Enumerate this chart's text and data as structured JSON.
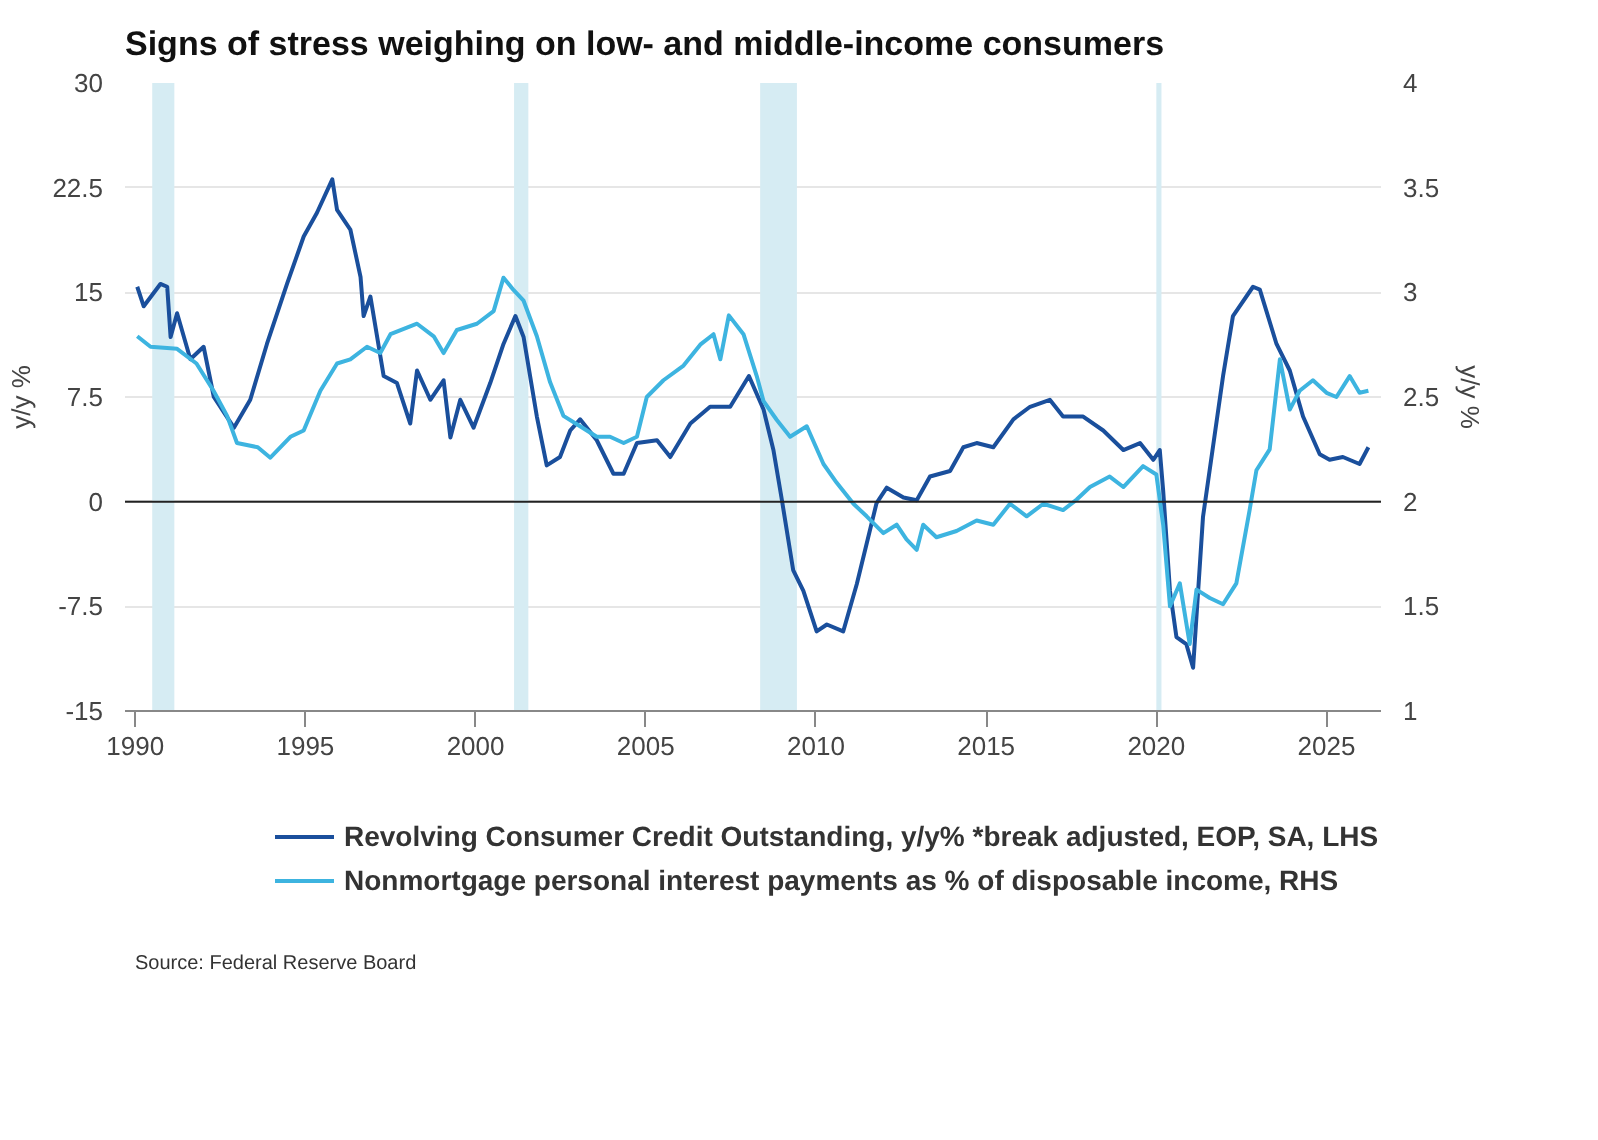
{
  "chart_data": {
    "type": "line",
    "title": "Signs of stress weighing on low- and middle-income consumers",
    "ylabel": "y/y %",
    "y2label": "y/y %",
    "xlim": [
      1989.7,
      2026.6
    ],
    "xticks": [
      1990,
      1995,
      2000,
      2005,
      2010,
      2015,
      2020,
      2025
    ],
    "ylim": [
      -15,
      30
    ],
    "yticks": [
      -15,
      -7.5,
      0,
      7.5,
      15,
      22.5,
      30
    ],
    "y2lim": [
      1,
      4
    ],
    "y2ticks": [
      1,
      1.5,
      2,
      2.5,
      3,
      3.5,
      4
    ],
    "grid": "y",
    "legend": "bottom",
    "ref_lines": [
      {
        "axis": "y",
        "value": 0,
        "color": "#222222"
      }
    ],
    "bands": [
      {
        "axis": "x",
        "from": 1990.5,
        "to": 1991.15,
        "color": "#d6ecf3"
      },
      {
        "axis": "x",
        "from": 2001.13,
        "to": 2001.55,
        "color": "#d6ecf3"
      },
      {
        "axis": "x",
        "from": 2008.36,
        "to": 2009.44,
        "color": "#d6ecf3"
      },
      {
        "axis": "x",
        "from": 2020.0,
        "to": 2020.15,
        "color": "#d6ecf3"
      }
    ],
    "series": [
      {
        "name": "Revolving Consumer Credit Outstanding, y/y% *break adjusted, EOP, SA, LHS",
        "color": "#1a4f9c",
        "x": [
          1990.06,
          1990.25,
          1990.74,
          1990.94,
          1991.04,
          1991.23,
          1991.62,
          1992.01,
          1992.31,
          1992.9,
          1993.38,
          1993.87,
          1994.46,
          1994.95,
          1995.34,
          1995.79,
          1995.93,
          1996.32,
          1996.62,
          1996.71,
          1996.91,
          1997.3,
          1997.69,
          1998.08,
          1998.28,
          1998.67,
          1999.06,
          1999.26,
          1999.55,
          1999.94,
          2000.43,
          2000.82,
          2001.17,
          2001.41,
          2001.8,
          2002.09,
          2002.48,
          2002.78,
          2003.07,
          2003.56,
          2004.05,
          2004.35,
          2004.74,
          2005.33,
          2005.72,
          2006.31,
          2006.89,
          2007.48,
          2008.03,
          2008.46,
          2008.75,
          2009.0,
          2009.33,
          2009.63,
          2010.02,
          2010.32,
          2010.8,
          2011.2,
          2011.78,
          2012.08,
          2012.57,
          2012.96,
          2013.35,
          2013.94,
          2014.33,
          2014.72,
          2015.21,
          2015.8,
          2016.29,
          2016.87,
          2017.26,
          2017.85,
          2018.44,
          2019.03,
          2019.52,
          2019.91,
          2020.1,
          2020.2,
          2020.4,
          2020.59,
          2020.88,
          2021.08,
          2021.37,
          2021.96,
          2022.25,
          2022.84,
          2023.04,
          2023.53,
          2023.92,
          2024.31,
          2024.8,
          2025.09,
          2025.48,
          2025.97,
          2026.23
        ],
        "values": [
          15.4,
          14.0,
          15.6,
          15.4,
          11.8,
          13.5,
          10.2,
          11.1,
          7.5,
          5.3,
          7.3,
          11.3,
          15.6,
          19.0,
          20.7,
          23.1,
          20.9,
          19.5,
          16.1,
          13.3,
          14.7,
          9.0,
          8.5,
          5.6,
          9.4,
          7.3,
          8.7,
          4.6,
          7.3,
          5.3,
          8.5,
          11.3,
          13.3,
          11.8,
          6.1,
          2.6,
          3.2,
          5.1,
          5.9,
          4.4,
          2.0,
          2.0,
          4.2,
          4.4,
          3.2,
          5.6,
          6.8,
          6.8,
          9.0,
          6.6,
          3.7,
          0.1,
          -4.9,
          -6.4,
          -9.3,
          -8.8,
          -9.3,
          -5.9,
          -0.1,
          1.0,
          0.3,
          0.1,
          1.8,
          2.2,
          3.9,
          4.2,
          3.9,
          5.9,
          6.8,
          7.3,
          6.1,
          6.1,
          5.1,
          3.7,
          4.2,
          3.0,
          3.7,
          0.8,
          -6.4,
          -9.7,
          -10.2,
          -11.9,
          -1.1,
          9.0,
          13.3,
          15.4,
          15.2,
          11.3,
          9.4,
          6.1,
          3.4,
          3.0,
          3.2,
          2.7,
          3.9
        ]
      },
      {
        "name": "Nonmortgage personal interest payments as % of disposable income, RHS",
        "color": "#3db4e0",
        "axis": "y2",
        "x": [
          1990.06,
          1990.45,
          1991.23,
          1991.8,
          1992.3,
          1992.7,
          1992.99,
          1993.6,
          1993.97,
          1994.56,
          1994.95,
          1995.44,
          1995.93,
          1996.32,
          1996.81,
          1997.2,
          1997.5,
          1998.28,
          1998.77,
          1999.06,
          1999.45,
          2000.04,
          2000.53,
          2000.82,
          2001.12,
          2001.41,
          2001.8,
          2002.19,
          2002.58,
          2003.07,
          2003.56,
          2003.95,
          2004.35,
          2004.74,
          2005.03,
          2005.52,
          2006.11,
          2006.6,
          2006.99,
          2007.19,
          2007.44,
          2007.87,
          2008.26,
          2008.46,
          2008.85,
          2009.24,
          2009.73,
          2010.22,
          2010.61,
          2011.1,
          2011.49,
          2011.98,
          2012.37,
          2012.66,
          2012.96,
          2013.15,
          2013.54,
          2014.13,
          2014.72,
          2015.21,
          2015.7,
          2016.19,
          2016.68,
          2017.26,
          2017.66,
          2018.05,
          2018.63,
          2019.03,
          2019.61,
          2020.0,
          2020.2,
          2020.4,
          2020.69,
          2020.98,
          2021.18,
          2021.57,
          2021.96,
          2022.35,
          2022.74,
          2022.94,
          2023.33,
          2023.63,
          2023.92,
          2024.21,
          2024.6,
          2025.0,
          2025.29,
          2025.68,
          2025.97,
          2026.23
        ],
        "values": [
          2.79,
          2.74,
          2.73,
          2.66,
          2.53,
          2.41,
          2.28,
          2.26,
          2.21,
          2.31,
          2.34,
          2.53,
          2.66,
          2.68,
          2.74,
          2.71,
          2.8,
          2.85,
          2.79,
          2.71,
          2.82,
          2.85,
          2.91,
          3.07,
          3.01,
          2.96,
          2.79,
          2.57,
          2.41,
          2.36,
          2.31,
          2.31,
          2.28,
          2.31,
          2.5,
          2.58,
          2.65,
          2.75,
          2.8,
          2.68,
          2.89,
          2.8,
          2.6,
          2.48,
          2.39,
          2.31,
          2.36,
          2.18,
          2.09,
          1.99,
          1.93,
          1.85,
          1.89,
          1.82,
          1.77,
          1.89,
          1.83,
          1.86,
          1.91,
          1.89,
          1.99,
          1.93,
          1.99,
          1.96,
          2.01,
          2.07,
          2.12,
          2.07,
          2.17,
          2.13,
          1.89,
          1.5,
          1.61,
          1.32,
          1.58,
          1.54,
          1.51,
          1.61,
          1.96,
          2.15,
          2.25,
          2.68,
          2.44,
          2.53,
          2.58,
          2.52,
          2.5,
          2.6,
          2.52,
          2.53
        ]
      }
    ],
    "annotations": [
      "Source: Federal Reserve Board"
    ]
  }
}
